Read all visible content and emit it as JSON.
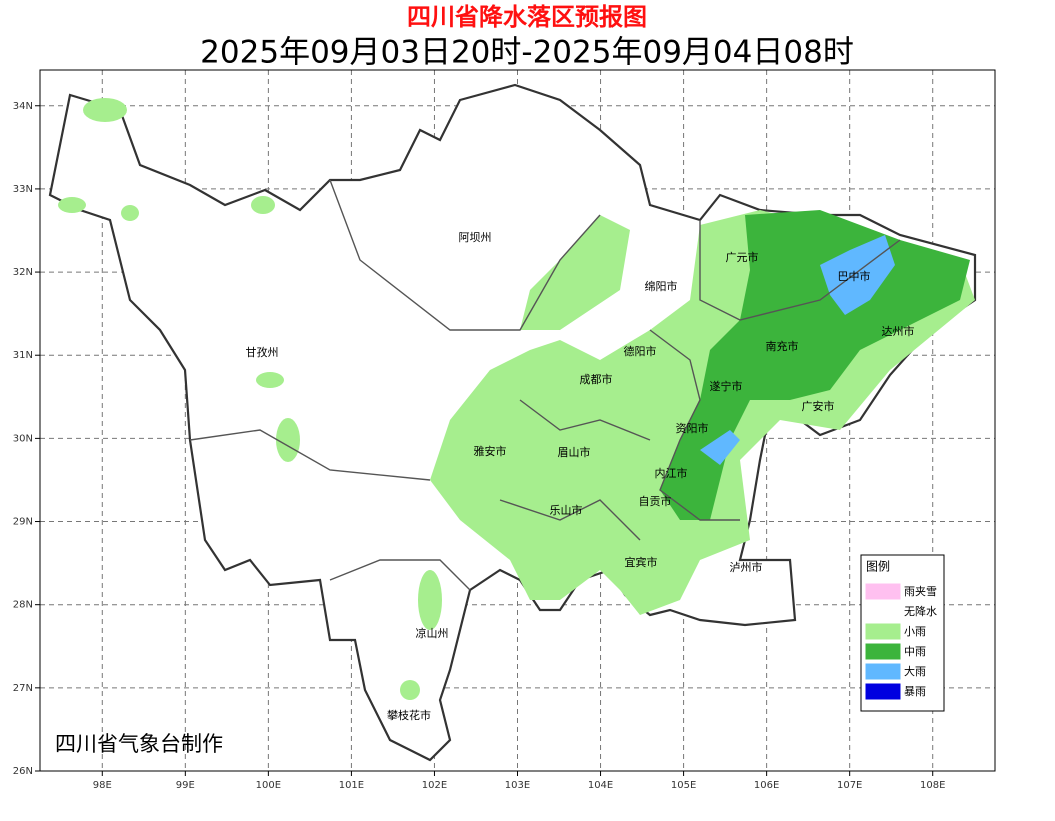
{
  "header": {
    "title": "四川省降水落区预报图",
    "subtitle": "2025年09月03日20时-2025年09月04日08时"
  },
  "map": {
    "xlim": [
      97.25,
      108.75
    ],
    "ylim": [
      26,
      34.43
    ],
    "xticks": [
      {
        "value": 98,
        "label": "98E"
      },
      {
        "value": 99,
        "label": "99E"
      },
      {
        "value": 100,
        "label": "100E"
      },
      {
        "value": 101,
        "label": "101E"
      },
      {
        "value": 102,
        "label": "102E"
      },
      {
        "value": 103,
        "label": "103E"
      },
      {
        "value": 104,
        "label": "104E"
      },
      {
        "value": 105,
        "label": "105E"
      },
      {
        "value": 106,
        "label": "106E"
      },
      {
        "value": 107,
        "label": "107E"
      },
      {
        "value": 108,
        "label": "108E"
      }
    ],
    "yticks": [
      {
        "value": 26,
        "label": "26N"
      },
      {
        "value": 27,
        "label": "27N"
      },
      {
        "value": 28,
        "label": "28N"
      },
      {
        "value": 29,
        "label": "29N"
      },
      {
        "value": 30,
        "label": "30N"
      },
      {
        "value": 31,
        "label": "31N"
      },
      {
        "value": 32,
        "label": "32N"
      },
      {
        "value": 33,
        "label": "33N"
      },
      {
        "value": 34,
        "label": "34N"
      }
    ],
    "grid": true,
    "regions": [
      "阿坝州",
      "广元市",
      "巴中市",
      "绵阳市",
      "达州市",
      "甘孜州",
      "德阳市",
      "南充市",
      "成都市",
      "遂宁市",
      "广安市",
      "资阳市",
      "雅安市",
      "眉山市",
      "内江市",
      "自贡市",
      "乐山市",
      "宜宾市",
      "泸州市",
      "凉山州",
      "攀枝花市"
    ]
  },
  "legend": {
    "title": "图例",
    "items": [
      {
        "name": "雨夹雪",
        "color": "#ffc0f0"
      },
      {
        "name": "无降水",
        "color": "#ffffff"
      },
      {
        "name": "小雨",
        "color": "#a6ee8e"
      },
      {
        "name": "中雨",
        "color": "#3cb43c"
      },
      {
        "name": "大雨",
        "color": "#60b8ff"
      },
      {
        "name": "暴雨",
        "color": "#0000e0"
      }
    ]
  },
  "credit": "四川省气象台制作"
}
